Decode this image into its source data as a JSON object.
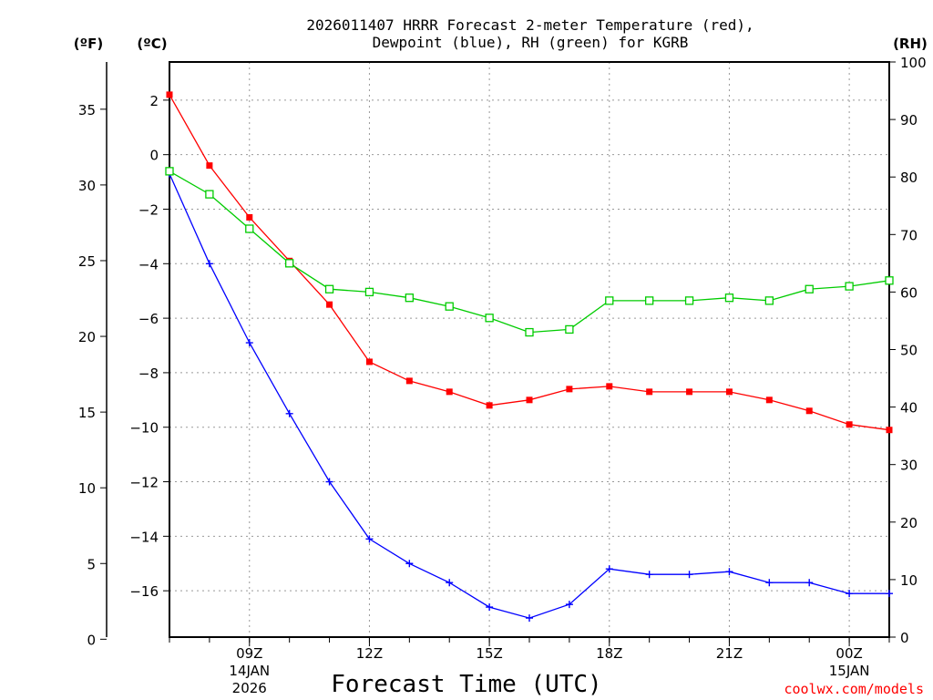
{
  "chart_data": {
    "type": "line",
    "title_line1": "2026011407 HRRR Forecast 2-meter Temperature (red),",
    "title_line2": "Dewpoint (blue), RH (green) for KGRB",
    "xlabel": "Forecast Time (UTC)",
    "credit": "coolwx.com/models",
    "colors": {
      "temperature": "#ff0000",
      "dewpoint": "#0000ff",
      "rh": "#00cc00",
      "credit": "#ff0000"
    },
    "hours": [
      7,
      8,
      9,
      10,
      11,
      12,
      13,
      14,
      15,
      16,
      17,
      18,
      19,
      20,
      21,
      22,
      23,
      24,
      25
    ],
    "series": [
      {
        "name": "Temperature",
        "unit": "C",
        "values": [
          2.2,
          -0.4,
          -2.3,
          -3.9,
          -5.5,
          -7.6,
          -8.3,
          -8.7,
          -9.2,
          -9.0,
          -8.6,
          -8.5,
          -8.7,
          -8.7,
          -8.7,
          -9.0,
          -9.4,
          -9.9,
          -10.1
        ]
      },
      {
        "name": "Dewpoint",
        "unit": "C",
        "values": [
          -0.7,
          -4.0,
          -6.9,
          -9.5,
          -12.0,
          -14.1,
          -15.0,
          -15.7,
          -16.6,
          -17.0,
          -16.5,
          -15.2,
          -15.4,
          -15.4,
          -15.3,
          -15.7,
          -15.7,
          -16.1,
          -16.1
        ]
      },
      {
        "name": "RH",
        "unit": "%",
        "values": [
          81,
          77,
          71,
          65,
          60.5,
          60,
          59,
          57.5,
          55.5,
          53,
          53.5,
          58.5,
          58.5,
          58.5,
          59,
          58.5,
          60.5,
          61,
          62
        ]
      }
    ],
    "x_ticks": [
      {
        "hour": 9,
        "label": "09Z"
      },
      {
        "hour": 12,
        "label": "12Z"
      },
      {
        "hour": 15,
        "label": "15Z"
      },
      {
        "hour": 18,
        "label": "18Z"
      },
      {
        "hour": 21,
        "label": "21Z"
      },
      {
        "hour": 24,
        "label": "00Z"
      }
    ],
    "date_labels": [
      {
        "hour": 9,
        "line1": "14JAN",
        "line2": "2026"
      },
      {
        "hour": 24,
        "line1": "15JAN",
        "line2": ""
      }
    ],
    "x_range": [
      7,
      25
    ],
    "celsius_axis": {
      "label": "(ºC)",
      "range": [
        -17.7,
        3.4
      ],
      "ticks": [
        2,
        0,
        -2,
        -4,
        -6,
        -8,
        -10,
        -12,
        -14,
        -16
      ]
    },
    "fahrenheit_axis": {
      "label": "(ºF)",
      "ticks": [
        35,
        30,
        25,
        20,
        15,
        10,
        5,
        0
      ]
    },
    "rh_axis": {
      "label": "(RH)",
      "range": [
        0,
        100
      ],
      "ticks": [
        100,
        90,
        80,
        70,
        60,
        50,
        40,
        30,
        20,
        10,
        0
      ]
    }
  }
}
